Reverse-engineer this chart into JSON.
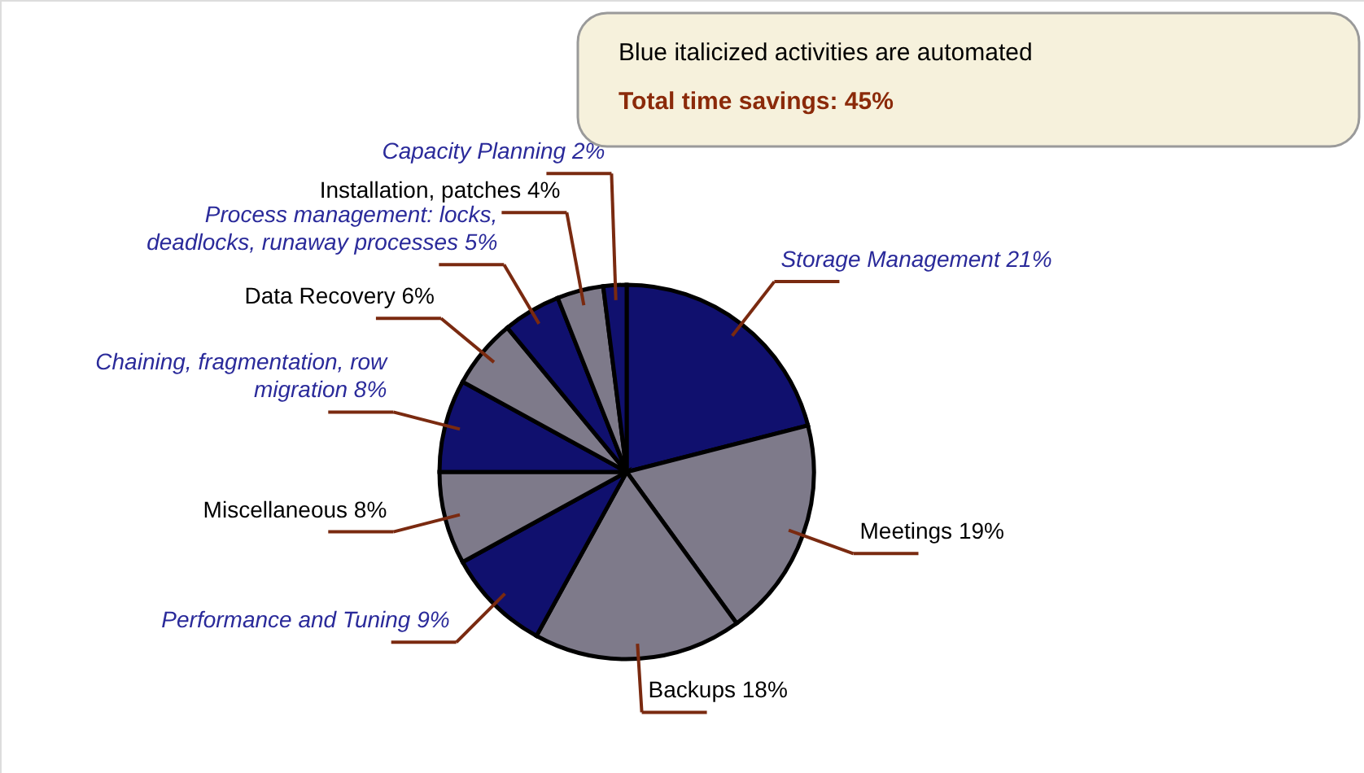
{
  "chart_data": {
    "type": "pie",
    "categories": [
      "Storage Management",
      "Meetings",
      "Backups",
      "Performance and Tuning",
      "Miscellaneous",
      "Chaining, fragmentation, row migration",
      "Data Recovery",
      "Process management: locks, deadlocks, runaway processes",
      "Installation, patches",
      "Capacity Planning"
    ],
    "values": [
      21,
      19,
      18,
      9,
      8,
      8,
      6,
      5,
      4,
      2
    ],
    "value_labels": [
      "21%",
      "19%",
      "18%",
      "9%",
      "8%",
      "8%",
      "6%",
      "5%",
      "4%",
      "2%"
    ],
    "colors": [
      "#10106e",
      "#7e7a8a",
      "#7e7a8a",
      "#10106e",
      "#7e7a8a",
      "#10106e",
      "#7e7a8a",
      "#10106e",
      "#7e7a8a",
      "#10106e"
    ],
    "annotations": [
      "Blue italicized activities are automated",
      "Total time savings: 45%"
    ]
  }
}
